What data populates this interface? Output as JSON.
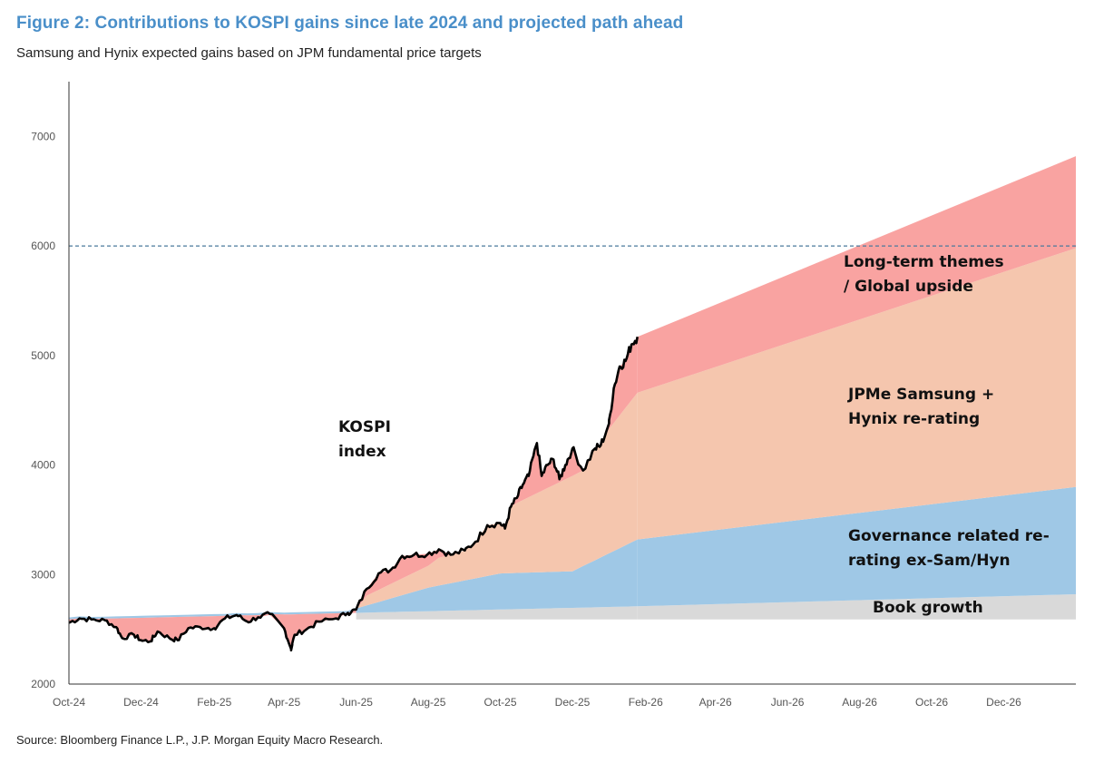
{
  "header": {
    "title": "Figure 2: Contributions to KOSPI gains since late 2024 and projected path ahead",
    "subtitle": "Samsung and Hynix expected gains based on JPM fundamental price targets"
  },
  "footer": {
    "source": "Source: Bloomberg Finance L.P., J.P. Morgan Equity Macro Research."
  },
  "colors": {
    "kospi_line": "#000000",
    "long_term": "#f9a3a1",
    "samsung_hynix": "#f5c6ae",
    "governance": "#9fc8e6",
    "book_growth": "#d9d9d9",
    "reference_line": "#4a7a9c"
  },
  "chart_data": {
    "type": "area",
    "xlabel": "",
    "ylabel": "",
    "ylim": [
      2000,
      7500
    ],
    "yticks": [
      2000,
      3000,
      4000,
      5000,
      6000,
      7000
    ],
    "xtick_labels": [
      "Oct-24",
      "Dec-24",
      "Feb-25",
      "Apr-25",
      "Jun-25",
      "Aug-25",
      "Oct-25",
      "Dec-25",
      "Feb-26",
      "Apr-26",
      "Jun-26",
      "Aug-26",
      "Oct-26",
      "Dec-26"
    ],
    "xtick_dates": [
      "2024-10-01",
      "2024-12-01",
      "2025-02-01",
      "2025-04-01",
      "2025-06-01",
      "2025-08-01",
      "2025-10-01",
      "2025-12-01",
      "2026-02-01",
      "2026-04-01",
      "2026-06-01",
      "2026-08-01",
      "2026-10-01",
      "2026-12-01"
    ],
    "reference_line": {
      "y": 6000,
      "style": "dashed"
    },
    "baseline": 2590,
    "kospi_index": {
      "name": "KOSPI index",
      "x": [
        "2024-10-01",
        "2024-10-10",
        "2024-10-20",
        "2024-11-01",
        "2024-11-10",
        "2024-11-15",
        "2024-11-25",
        "2024-12-01",
        "2024-12-09",
        "2024-12-15",
        "2024-12-25",
        "2025-01-01",
        "2025-01-10",
        "2025-01-20",
        "2025-02-01",
        "2025-02-10",
        "2025-02-20",
        "2025-03-01",
        "2025-03-10",
        "2025-03-20",
        "2025-04-01",
        "2025-04-07",
        "2025-04-10",
        "2025-04-20",
        "2025-05-01",
        "2025-05-15",
        "2025-05-25",
        "2025-06-01",
        "2025-06-10",
        "2025-06-20",
        "2025-07-01",
        "2025-07-10",
        "2025-07-20",
        "2025-08-01",
        "2025-08-10",
        "2025-08-20",
        "2025-09-01",
        "2025-09-10",
        "2025-09-20",
        "2025-10-01",
        "2025-10-05",
        "2025-10-10",
        "2025-10-15",
        "2025-10-20",
        "2025-10-25",
        "2025-11-01",
        "2025-11-05",
        "2025-11-10",
        "2025-11-15",
        "2025-11-20",
        "2025-11-25",
        "2025-12-01",
        "2025-12-10",
        "2025-12-20",
        "2025-12-25",
        "2026-01-01",
        "2026-01-05",
        "2026-01-10",
        "2026-01-15",
        "2026-01-20",
        "2026-01-25"
      ],
      "y": [
        2560,
        2600,
        2590,
        2580,
        2520,
        2420,
        2450,
        2400,
        2390,
        2480,
        2420,
        2400,
        2510,
        2520,
        2510,
        2600,
        2630,
        2570,
        2610,
        2640,
        2510,
        2320,
        2450,
        2500,
        2570,
        2600,
        2650,
        2680,
        2870,
        3010,
        3050,
        3170,
        3180,
        3190,
        3230,
        3180,
        3220,
        3300,
        3450,
        3470,
        3420,
        3620,
        3700,
        3820,
        3900,
        4200,
        3900,
        4000,
        4050,
        3870,
        4000,
        4150,
        3950,
        4150,
        4180,
        4380,
        4700,
        4900,
        4950,
        5100,
        5170
      ]
    },
    "projection_start": "2026-01-25",
    "projection_end": "2027-01-31",
    "series": [
      {
        "name": "Book growth",
        "x": [
          "2024-10-01",
          "2025-06-01",
          "2026-01-25",
          "2027-01-31"
        ],
        "y": [
          2590,
          2650,
          2710,
          2820
        ]
      },
      {
        "name": "Governance related re-rating ex-Sam/Hyn",
        "x": [
          "2025-06-01",
          "2025-08-01",
          "2025-10-01",
          "2025-12-01",
          "2026-01-25",
          "2027-01-31"
        ],
        "y": [
          2690,
          2880,
          3010,
          3030,
          3320,
          3800
        ]
      },
      {
        "name": "JPMe Samsung + Hynix re-rating",
        "x": [
          "2025-06-01",
          "2025-08-01",
          "2025-10-01",
          "2025-12-01",
          "2026-01-25",
          "2027-01-31"
        ],
        "y": [
          2760,
          3080,
          3580,
          3900,
          4660,
          5980
        ]
      },
      {
        "name": "Long-term themes / Global upside",
        "x": [
          "2026-01-25",
          "2027-01-31"
        ],
        "y": [
          5170,
          6820
        ]
      }
    ],
    "annotations": [
      {
        "lines": [
          "KOSPI",
          "index"
        ]
      },
      {
        "lines": [
          "Long-term themes",
          "/ Global upside"
        ]
      },
      {
        "lines": [
          "JPMe Samsung +",
          "Hynix re-rating"
        ]
      },
      {
        "lines": [
          "Governance related re-",
          "rating ex-Sam/Hyn"
        ]
      },
      {
        "lines": [
          "Book growth"
        ]
      }
    ]
  }
}
